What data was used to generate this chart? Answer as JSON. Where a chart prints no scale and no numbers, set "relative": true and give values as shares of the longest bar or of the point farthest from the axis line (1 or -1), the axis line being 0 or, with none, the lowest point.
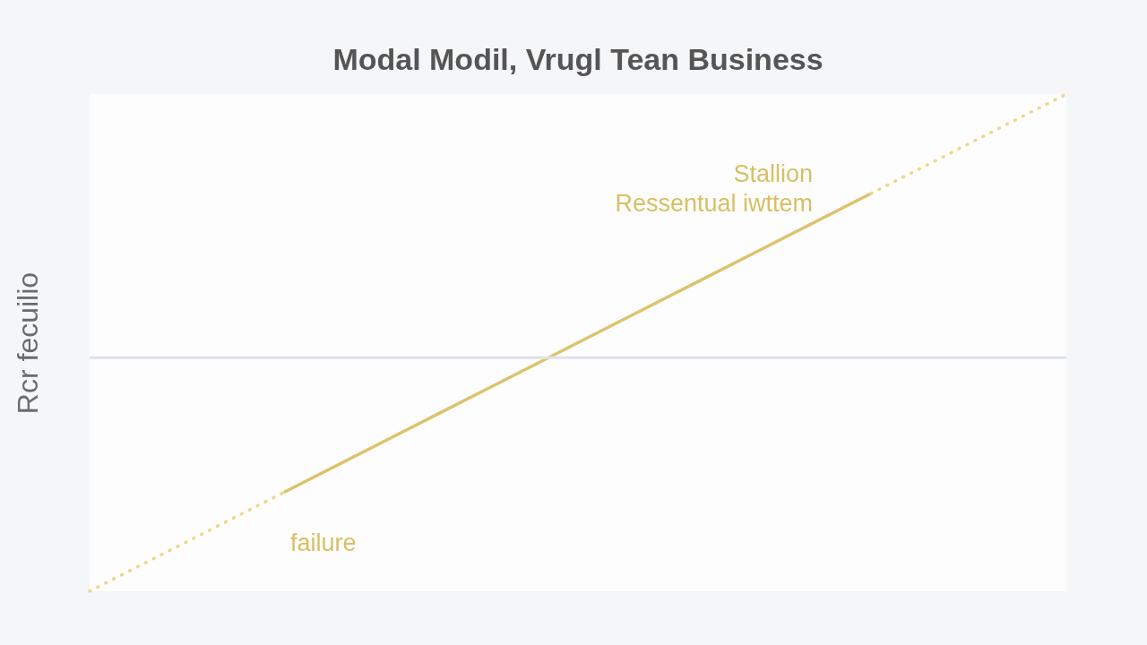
{
  "chart_data": {
    "type": "line",
    "title": "Modal Modil, Vrugl Tean Business",
    "ylabel": "Rcr fecuilio",
    "relative": true,
    "categories": [
      null,
      null,
      null,
      null,
      null,
      null,
      null,
      null,
      null,
      null,
      null
    ],
    "series": [
      {
        "color": "#ecd98a",
        "line_style": "dotted",
        "values": [
          0,
          0.1,
          0.2,
          null,
          null,
          null,
          null,
          null,
          null,
          null,
          null
        ]
      },
      {
        "color": "#dcc36c",
        "line_style": "solid",
        "values": [
          null,
          null,
          0.2,
          0.3,
          0.4,
          0.5,
          0.6,
          0.7,
          0.8,
          null,
          null
        ]
      },
      {
        "color": "#ecd98a",
        "line_style": "dotted",
        "values": [
          null,
          null,
          null,
          null,
          null,
          null,
          null,
          null,
          0.8,
          0.9,
          1
        ]
      }
    ],
    "ref_lines": [
      {
        "axis": "y",
        "value": 0.47,
        "color": "#dfe2e8"
      }
    ],
    "annotations": [
      "Stallion",
      "Ressentual iwttem",
      "failure"
    ]
  }
}
